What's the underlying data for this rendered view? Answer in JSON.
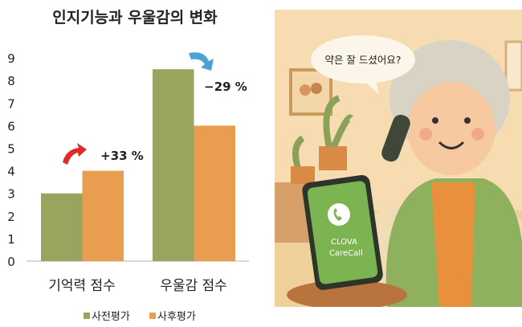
{
  "chart_data": {
    "type": "bar",
    "title": "인지기능과 우울감의 변화",
    "categories": [
      "기억력 점수",
      "우울감 점수"
    ],
    "series": [
      {
        "name": "사전평가",
        "values": [
          3,
          8.5
        ],
        "color": "#97a55f"
      },
      {
        "name": "사후평가",
        "values": [
          4,
          6
        ],
        "color": "#e89d4f"
      }
    ],
    "ylim": [
      0,
      9
    ],
    "yticks": [
      "0",
      "1",
      "2",
      "3",
      "4",
      "5",
      "6",
      "7",
      "8",
      "9"
    ],
    "grid": false,
    "legend": "bottom",
    "annotations": [
      {
        "category": "기억력 점수",
        "text": "+33 %",
        "arrow": "up",
        "color": "#e02a2a"
      },
      {
        "category": "우울감 점수",
        "text": "−29 %",
        "arrow": "down",
        "color": "#4aa3d0"
      }
    ]
  },
  "illustration": {
    "speech_bubble": "약은 잘 드셨어요?",
    "phone_brand": "CLOVA",
    "phone_app": "CareCall",
    "icon": "phone-call-icon"
  }
}
